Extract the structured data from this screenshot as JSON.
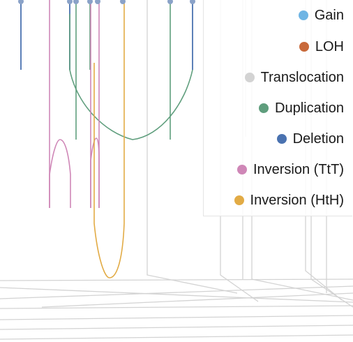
{
  "chart_data": {
    "type": "structural-variant-arc-plot",
    "title": "",
    "legend_position": "top-right",
    "legend": [
      {
        "label": "Gain",
        "color": "#6fb5e4"
      },
      {
        "label": "LOH",
        "color": "#c8693a"
      },
      {
        "label": "Translocation",
        "color": "#d3d3d3"
      },
      {
        "label": "Duplication",
        "color": "#5f9e7d"
      },
      {
        "label": "Deletion",
        "color": "#4a72b0"
      },
      {
        "label": "Inversion (TtT)",
        "color": "#cf87b7"
      },
      {
        "label": "Inversion (HtH)",
        "color": "#e2ab45"
      }
    ]
  }
}
